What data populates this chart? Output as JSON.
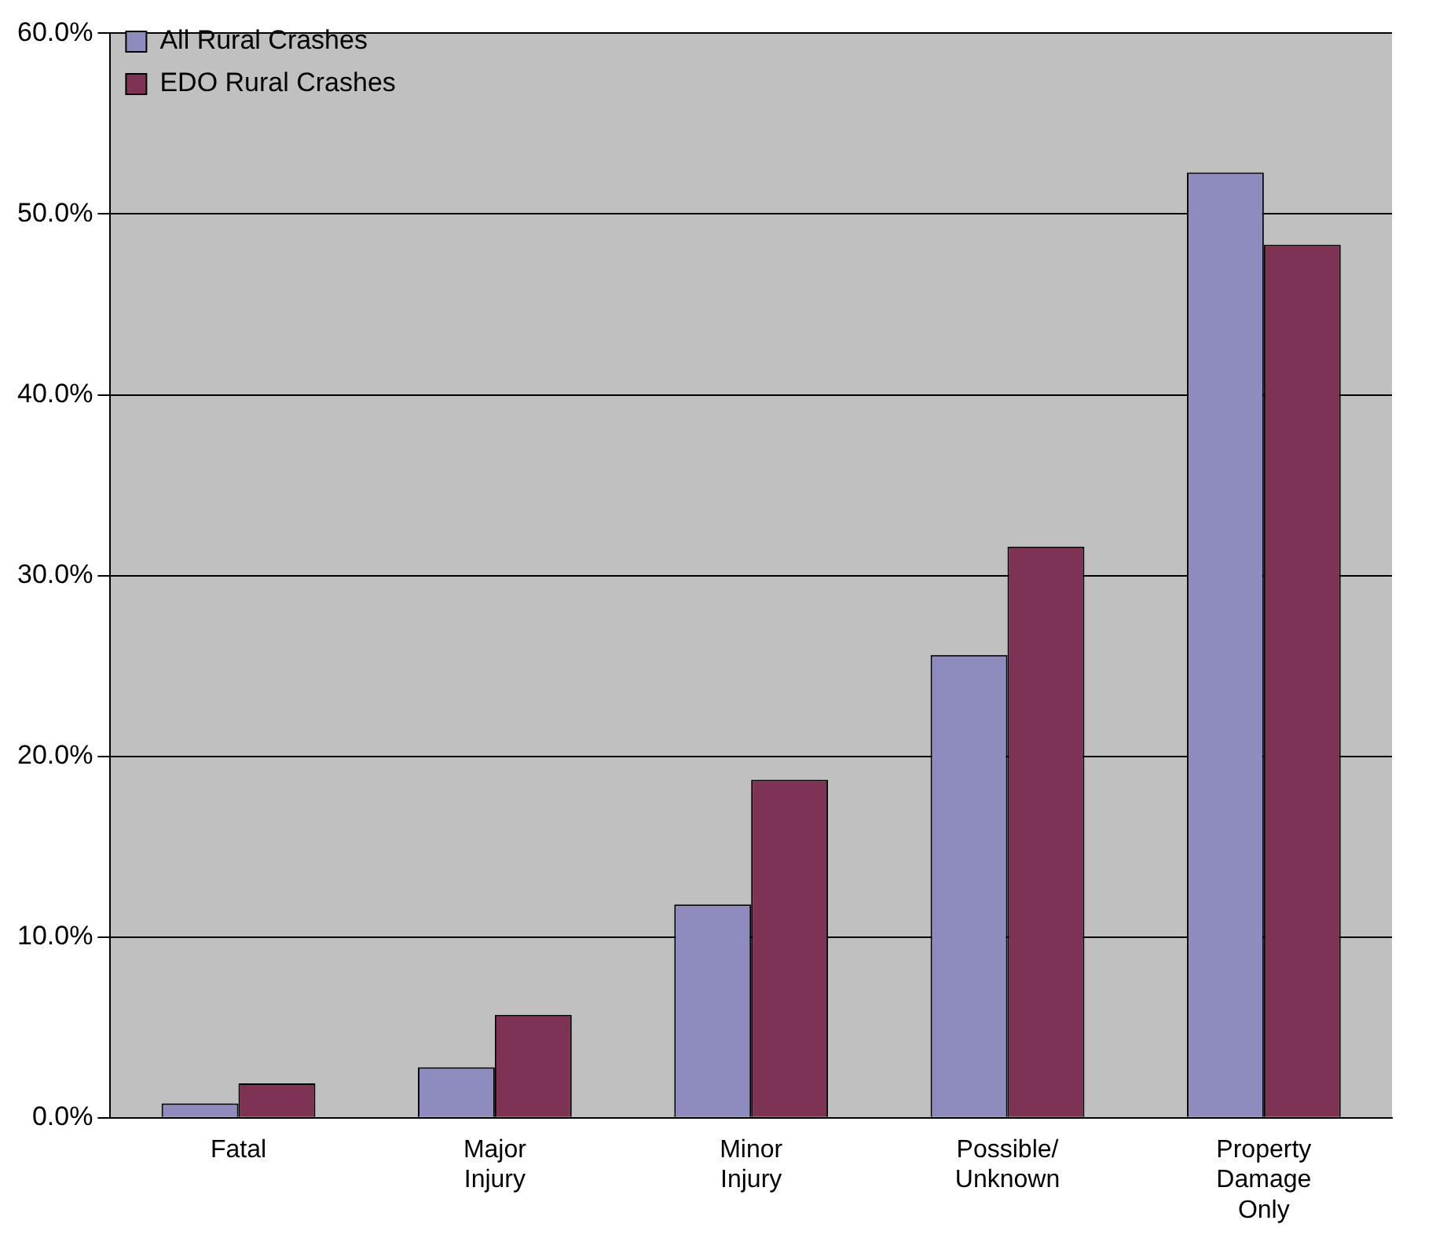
{
  "chart_data": {
    "type": "bar",
    "categories": [
      "Fatal",
      "Major Injury",
      "Minor Injury",
      "Possible/Unknown",
      "Property Damage Only"
    ],
    "series": [
      {
        "name": "All Rural Crashes",
        "color": "#8e8cbf",
        "values": [
          0.8,
          2.8,
          11.8,
          25.6,
          52.3
        ]
      },
      {
        "name": "EDO Rural Crashes",
        "color": "#7f3354",
        "values": [
          1.9,
          5.7,
          18.7,
          31.6,
          48.3
        ]
      }
    ],
    "ylim": [
      0,
      60
    ],
    "yticks": [
      {
        "value": 0,
        "label": "0.0%"
      },
      {
        "value": 10,
        "label": "10.0%"
      },
      {
        "value": 20,
        "label": "20.0%"
      },
      {
        "value": 30,
        "label": "30.0%"
      },
      {
        "value": 40,
        "label": "40.0%"
      },
      {
        "value": 50,
        "label": "50.0%"
      },
      {
        "value": 60,
        "label": "60.0%"
      }
    ],
    "grid": "y",
    "legend": "top left"
  }
}
